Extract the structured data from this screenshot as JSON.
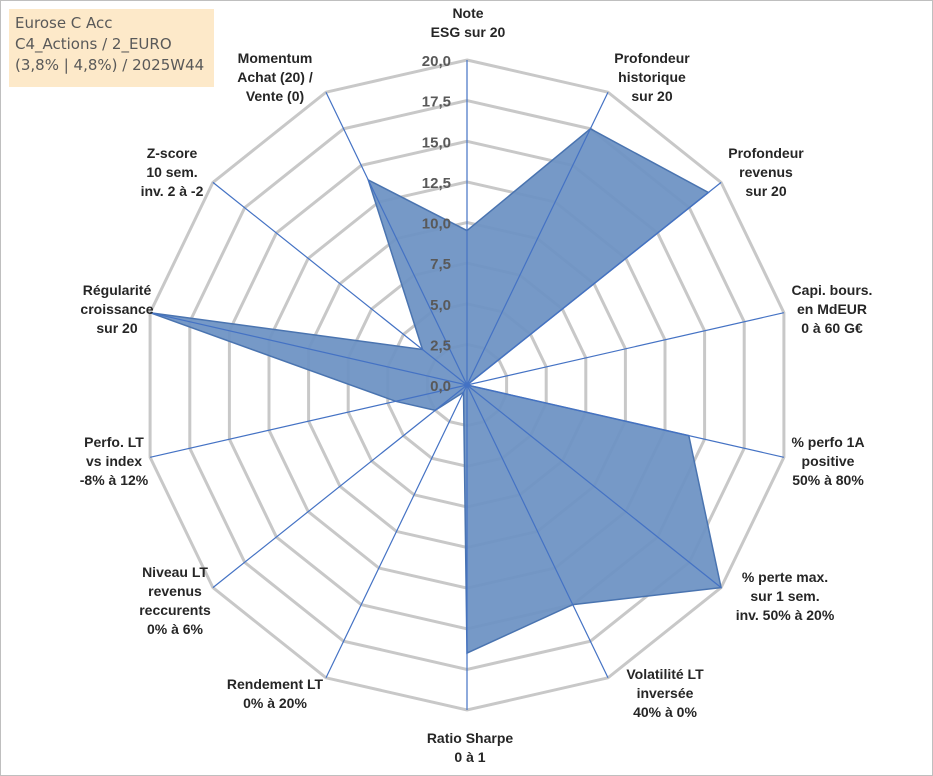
{
  "info_box": {
    "line1": "Eurose C Acc",
    "line2": "C4_Actions / 2_EURO",
    "line3": "(3,8% | 4,8%) / 2025W44"
  },
  "colors": {
    "series_fill": "#6f93c4",
    "series_stroke": "#4a74b0",
    "spoke": "#4472c4",
    "grid": "#c8c8c8",
    "tick_text": "#595959"
  },
  "chart_data": {
    "type": "radar",
    "title": "Eurose C Acc",
    "rmin": 0,
    "rmax": 20,
    "ticks": [
      "0,0",
      "2,5",
      "5,0",
      "7,5",
      "10,0",
      "12,5",
      "15,0",
      "17,5",
      "20,0"
    ],
    "tick_values": [
      0,
      2.5,
      5,
      7.5,
      10,
      12.5,
      15,
      17.5,
      20
    ],
    "categories": [
      [
        "Note",
        "ESG sur 20"
      ],
      [
        "Profondeur",
        "historique",
        "sur 20"
      ],
      [
        "Profondeur",
        "revenus",
        "sur 20"
      ],
      [
        "Capi. bours.",
        "en MdEUR",
        "0 à 60 G€"
      ],
      [
        "% perfo 1A",
        "positive",
        "50% à 80%"
      ],
      [
        "% perte max.",
        "sur 1 sem.",
        "inv. 50% à 20%"
      ],
      [
        "Volatilité LT",
        "inversée",
        "40% à 0%"
      ],
      [
        "Ratio Sharpe",
        "0 à 1"
      ],
      [
        "Rendement LT",
        "0% à 20%"
      ],
      [
        "Niveau LT",
        "revenus",
        "reccurents",
        "0% à 6%"
      ],
      [
        "Perfo. LT",
        "vs index",
        "-8% à 12%"
      ],
      [
        "Régularité",
        "croissance",
        "sur 20"
      ],
      [
        "Z-score",
        "10 sem.",
        "inv. 2 à -2"
      ],
      [
        "Momentum",
        "Achat (20) /",
        "Vente (0)"
      ]
    ],
    "series": [
      {
        "name": "Eurose C Acc",
        "values": [
          9.5,
          17.5,
          19.0,
          0.0,
          14.0,
          20.0,
          15.0,
          16.5,
          0.5,
          2.5,
          4.5,
          20.0,
          3.5,
          14.0
        ]
      }
    ]
  }
}
